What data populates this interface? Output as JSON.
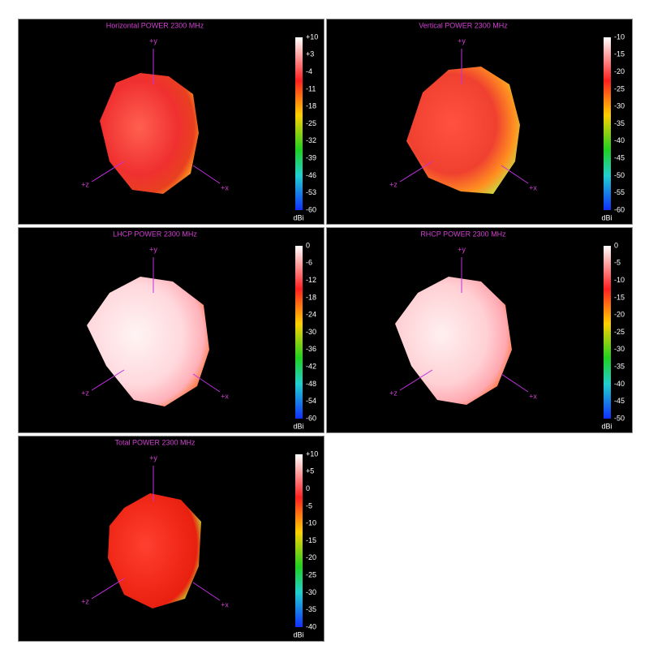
{
  "panels": [
    {
      "title": "Horizontal POWER 2300  MHz",
      "ticks": [
        "+10",
        "+3",
        "-4",
        "-11",
        "-18",
        "-25",
        "-32",
        "-39",
        "-46",
        "-53",
        "-60"
      ],
      "unit": "dBi",
      "axes": {
        "y": "+y",
        "z": "+z",
        "x": "+x"
      }
    },
    {
      "title": "Vertical POWER 2300  MHz",
      "ticks": [
        "-10",
        "-15",
        "-20",
        "-25",
        "-30",
        "-35",
        "-40",
        "-45",
        "-50",
        "-55",
        "-60"
      ],
      "unit": "dBi",
      "axes": {
        "y": "+y",
        "z": "+z",
        "x": "+x"
      }
    },
    {
      "title": "LHCP POWER 2300  MHz",
      "ticks": [
        "0",
        "-6",
        "-12",
        "-18",
        "-24",
        "-30",
        "-36",
        "-42",
        "-48",
        "-54",
        "-60"
      ],
      "unit": "dBi",
      "axes": {
        "y": "+y",
        "z": "+z",
        "x": "+x"
      }
    },
    {
      "title": "RHCP POWER 2300  MHz",
      "ticks": [
        "0",
        "-5",
        "-10",
        "-15",
        "-20",
        "-25",
        "-30",
        "-35",
        "-40",
        "-45",
        "-50"
      ],
      "unit": "dBi",
      "axes": {
        "y": "+y",
        "z": "+z",
        "x": "+x"
      }
    },
    {
      "title": "Total POWER 2300  MHz",
      "ticks": [
        "+10",
        "+5",
        "0",
        "-5",
        "-10",
        "-15",
        "-20",
        "-25",
        "-30",
        "-35",
        "-40"
      ],
      "unit": "dBi",
      "axes": {
        "y": "+y",
        "z": "+z",
        "x": "+x"
      }
    }
  ]
}
